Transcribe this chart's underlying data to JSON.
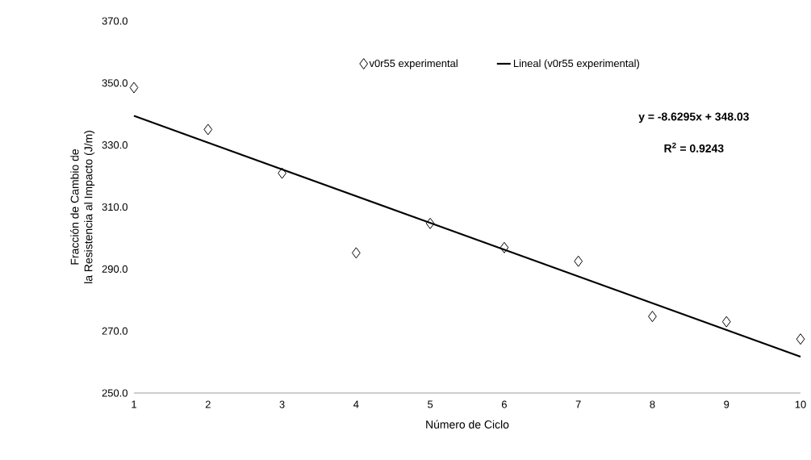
{
  "chart_data": {
    "type": "scatter",
    "xlabel": "Número de Ciclo",
    "ylabel": "Fracción de Cambio de\nla Resistencia al Impacto (J/m)",
    "x": [
      1,
      2,
      3,
      4,
      5,
      6,
      7,
      8,
      9,
      10
    ],
    "series": [
      {
        "name": "v0r55 experimental",
        "color": "#000000",
        "marker": "diamond",
        "values": [
          348.5,
          335.0,
          320.9,
          295.2,
          304.7,
          296.9,
          292.5,
          274.7,
          273.0,
          267.4
        ]
      },
      {
        "name": "Lineal (v0r55 experimental)",
        "type": "line",
        "color": "#000000",
        "marker": "none",
        "line_style": "solid",
        "x": [
          1,
          10
        ],
        "values": [
          339.4,
          261.7
        ]
      }
    ],
    "xlim": [
      1,
      10
    ],
    "xticks": [
      1,
      2,
      3,
      4,
      5,
      6,
      7,
      8,
      9,
      10
    ],
    "ylim": [
      250,
      370
    ],
    "yticks": [
      {
        "value": 250,
        "label": "250.0"
      },
      {
        "value": 270,
        "label": "270.0"
      },
      {
        "value": 290,
        "label": "290.0"
      },
      {
        "value": 310,
        "label": "310.0"
      },
      {
        "value": 330,
        "label": "330.0"
      },
      {
        "value": 350,
        "label": "350.0"
      },
      {
        "value": 370,
        "label": "370.0"
      }
    ],
    "annotations": [
      "y = -8.6295x + 348.03",
      "R$^{2}$ = 0.9243"
    ],
    "legend": "top",
    "grid": false
  }
}
